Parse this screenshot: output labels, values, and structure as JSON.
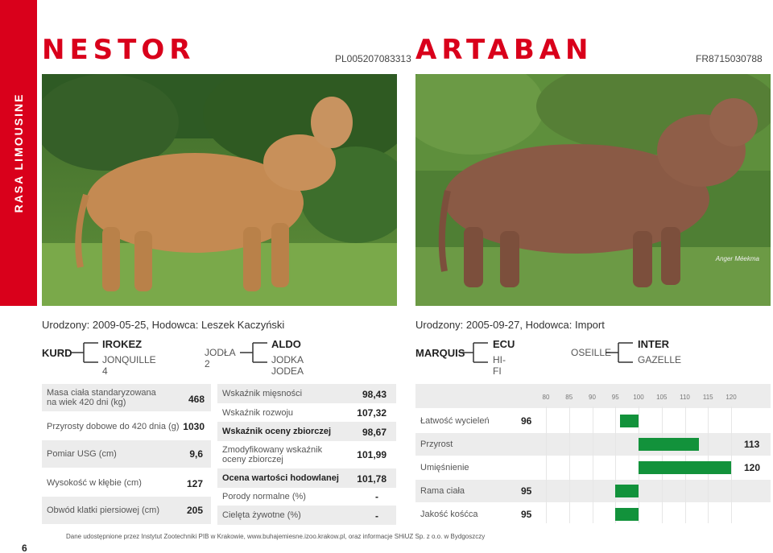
{
  "sidebar_label": "RASA LIMOUSINE",
  "page_number": "6",
  "footer": "Dane udostępnione przez Instytut Zootechniki PIB w Krakowie, www.buhajemiesne.izoo.krakow.pl, oraz informacje SHiUZ Sp. z o.o. w Bydgoszczy",
  "nestor": {
    "name": "NESTOR",
    "id": "PL005207083313",
    "born": "Urodzony: 2009-05-25, Hodowca: Leszek Kaczyński",
    "pedigree": {
      "sire": "KURD",
      "sire_sire": "IROKEZ",
      "sire_dam": "JONQUILLE 4",
      "dam": "JODŁA 2",
      "dam_sire": "ALDO",
      "dam_dam": "JODKA JODEA"
    },
    "measures": [
      {
        "label": "Masa ciała standaryzowana\nna wiek 420 dni (kg)",
        "value": "468"
      },
      {
        "label": "Przyrosty dobowe do 420 dnia (g)",
        "value": "1030"
      },
      {
        "label": "Pomiar USG (cm)",
        "value": "9,6"
      },
      {
        "label": "Wysokość w kłębie (cm)",
        "value": "127"
      },
      {
        "label": "Obwód klatki piersiowej (cm)",
        "value": "205"
      }
    ],
    "indices": [
      {
        "label": "Wskaźnik mięsności",
        "value": "98,43",
        "bold": false
      },
      {
        "label": "Wskaźnik rozwoju",
        "value": "107,32",
        "bold": false
      },
      {
        "label": "Wskaźnik oceny zbiorczej",
        "value": "98,67",
        "bold": true
      },
      {
        "label": "Zmodyfikowany wskaźnik\noceny zbiorczej",
        "value": "101,99",
        "bold": false
      },
      {
        "label": "Ocena wartości hodowlanej",
        "value": "101,78",
        "bold": true
      },
      {
        "label": "Porody normalne (%)",
        "value": "-",
        "bold": false
      },
      {
        "label": "Cielęta żywotne (%)",
        "value": "-",
        "bold": false
      }
    ]
  },
  "artaban": {
    "name": "ARTABAN",
    "id": "FR8715030788",
    "photo_credit": "Anger Méekma",
    "born": "Urodzony: 2005-09-27, Hodowca: Import",
    "pedigree": {
      "sire": "MARQUIS",
      "sire_sire": "ECU",
      "sire_dam": "HI-FI",
      "dam": "OSEILLE",
      "dam_sire": "INTER",
      "dam_dam": "GAZELLE"
    }
  },
  "chart_data": {
    "type": "bar",
    "orientation": "horizontal",
    "baseline": 100,
    "xlim": [
      75,
      125
    ],
    "ticks": [
      "80",
      "85",
      "90",
      "95",
      "100",
      "105",
      "110",
      "115",
      "120"
    ],
    "categories": [
      "Łatwość wycieleń",
      "Przyrost",
      "Umięśnienie",
      "Rama ciała",
      "Jakość kośćca"
    ],
    "values": [
      96,
      113,
      120,
      95,
      95
    ],
    "value_labels": [
      "96",
      "113",
      "120",
      "95",
      "95"
    ],
    "bar_color": "#12923b"
  },
  "colors": {
    "accent": "#d9001b",
    "band": "#ececec",
    "bar": "#12923b"
  }
}
